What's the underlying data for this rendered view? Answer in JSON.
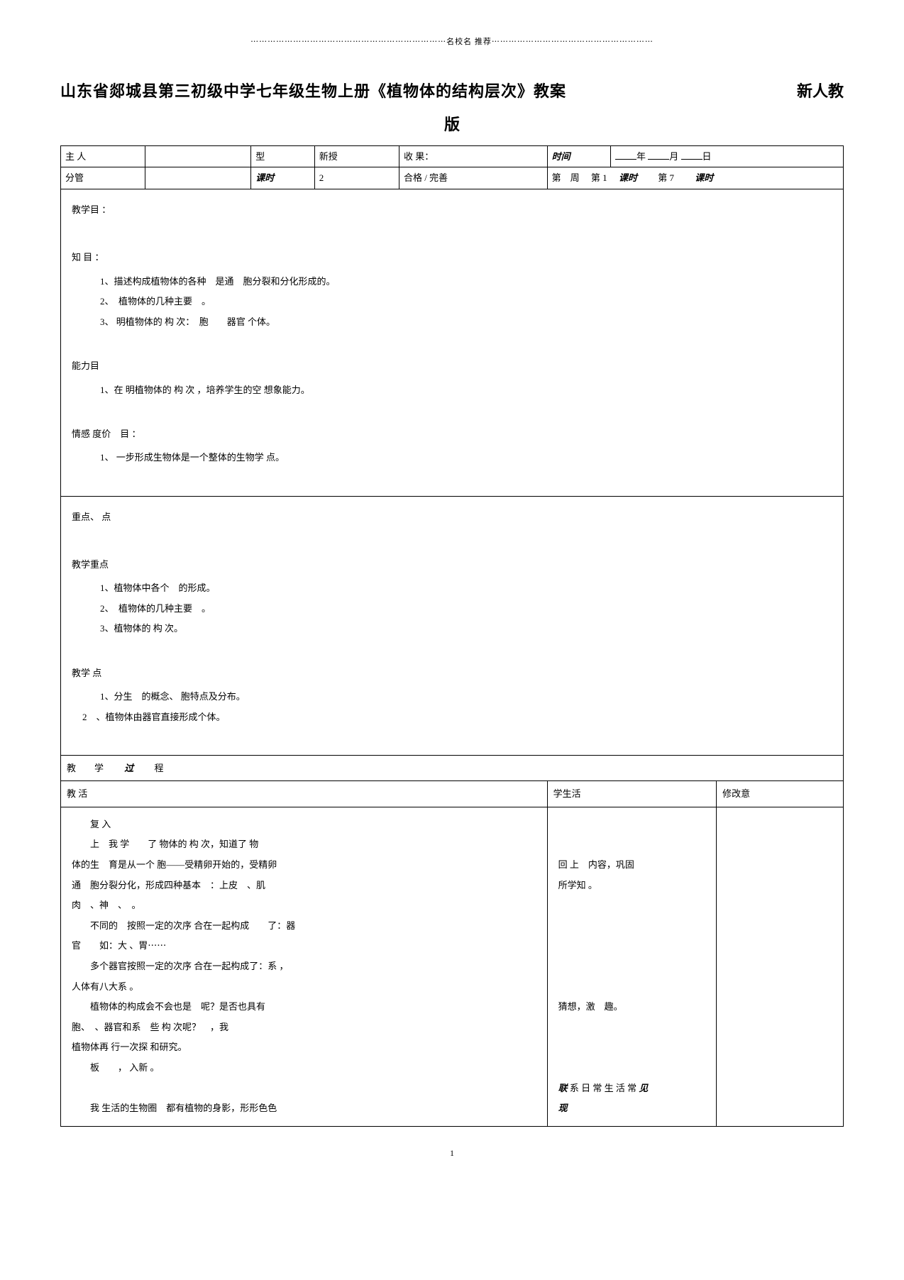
{
  "header_decoration": "⋯⋯⋯⋯⋯⋯⋯⋯⋯⋯⋯⋯⋯⋯⋯⋯⋯⋯⋯⋯⋯⋯⋯名校名 推荐⋯⋯⋯⋯⋯⋯⋯⋯⋯⋯⋯⋯⋯⋯⋯⋯⋯⋯⋯",
  "title_main": "山东省郯城县第三初级中学七年级生物上册《植物体的结构层次》教案",
  "title_right": "新人教",
  "subtitle": "版",
  "meta": {
    "row1": {
      "c1": "主 人",
      "c2": "",
      "c3": "型",
      "c4": "新授",
      "c5": "收 果：",
      "c6_label": "时间",
      "c6_year": "年",
      "c6_month": "月",
      "c6_day": "日"
    },
    "row2": {
      "c1": "分管",
      "c2": "",
      "c3_label": "课时",
      "c4": "2",
      "c5": "合格 / 完善",
      "c6_week": "第",
      "c6_week2": "周",
      "c6_di": "第",
      "c6_num": "1",
      "c6_keshi": "课时",
      "c6_di2": "第",
      "c6_num2": "7",
      "c6_keshi2": "课时"
    }
  },
  "objectives": {
    "header": "教学目 ：",
    "knowledge": {
      "header": "知 目 ：",
      "items": [
        "1、描述构成植物体的各种　是通　胞分裂和分化形成的。",
        "2、　植物体的几种主要　。",
        "3、 明植物体的 构 次：　胞　　器官 个体。"
      ]
    },
    "ability": {
      "header": "能力目",
      "items": [
        "1、在 明植物体的 构 次 ，培养学生的空 想象能力。"
      ]
    },
    "emotion": {
      "header": "情感 度价　目 ：",
      "items": [
        "1、 一步形成生物体是一个整体的生物学 点。"
      ]
    }
  },
  "key_points": {
    "header": "重点、 点",
    "focus": {
      "header": "教学重点",
      "items": [
        "1、植物体中各个　的形成。",
        "2、　植物体的几种主要　。",
        "3、植物体的 构 次。"
      ]
    },
    "difficulty": {
      "header": "教学 点",
      "items_left": [
        "1、分生　的概念、 胞特点及分布。"
      ],
      "item_2": "2　、植物体由器官直接形成个体。"
    }
  },
  "process": {
    "header_label": "教　　学　　",
    "header_guo": "过",
    "header_cheng": "　　程",
    "col1": "教 活",
    "col2": "学生活",
    "col3": "修改意"
  },
  "activity": {
    "teacher": [
      {
        "text": "复 入",
        "indent": 1
      },
      {
        "text": "上　我 学　　了 物体的 构 次，知道了 物",
        "indent": 1
      },
      {
        "text": "体的生　育是从一个 胞——受精卵开始的，受精卵",
        "indent": 0
      },
      {
        "text": "通　胞分裂分化，形成四种基本　：上皮　、肌",
        "indent": 0
      },
      {
        "text": "肉　、神　、　。",
        "indent": 0
      },
      {
        "text": "不同的　按照一定的次序 合在一起构成　　了：器",
        "indent": 1
      },
      {
        "text": "官　　如：大 、胃⋯⋯",
        "indent": 0
      },
      {
        "text": "多个器官按照一定的次序 合在一起构成了：系 ，",
        "indent": 1
      },
      {
        "text": "人体有八大系 。",
        "indent": 0
      },
      {
        "text": "植物体的构成会不会也是　呢？是否也具有",
        "indent": 1
      },
      {
        "text": "胞、　、器官和系　些 构 次呢？　，我",
        "indent": 0
      },
      {
        "text": " 植物体再 行一次探 和研究。",
        "indent": 0
      },
      {
        "text": "板　　， 入新 。",
        "indent": 1
      },
      {
        "text": "",
        "indent": 0
      },
      {
        "text": "我 生活的生物圈　都有植物的身影，形形色色",
        "indent": 1
      }
    ],
    "student": [
      {
        "text": "",
        "blank": true
      },
      {
        "text": "",
        "blank": true
      },
      {
        "text": "回 上　内容，巩固",
        "indent": 0
      },
      {
        "text": "所学知 。",
        "indent": 0
      },
      {
        "text": "",
        "blank": true
      },
      {
        "text": "",
        "blank": true
      },
      {
        "text": "",
        "blank": true
      },
      {
        "text": "",
        "blank": true
      },
      {
        "text": "",
        "blank": true
      },
      {
        "text": "猜想，激　趣。",
        "indent": 0
      },
      {
        "text": "",
        "blank": true
      },
      {
        "text": "",
        "blank": true
      },
      {
        "text": "",
        "blank": true
      },
      {
        "text_bold": "联",
        "text_mid": " 系 日 常 生 活 常 ",
        "text_bold2": "见",
        "indent": 0
      },
      {
        "text_bold": "现",
        "indent": 0
      }
    ]
  },
  "page_number": "1"
}
